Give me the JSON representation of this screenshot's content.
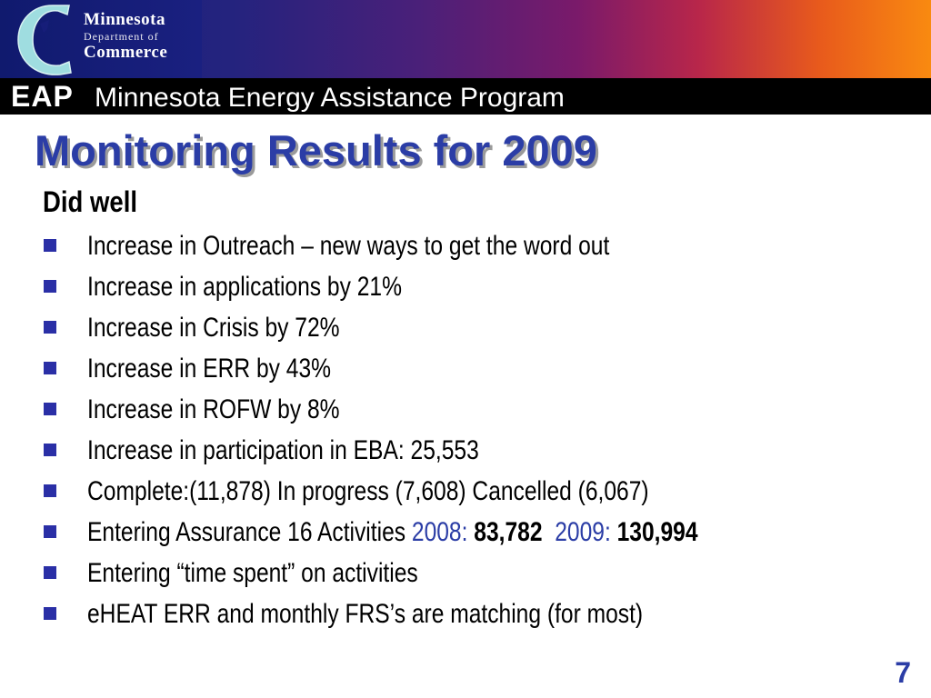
{
  "header": {
    "logo": {
      "line1": "Minnesota",
      "line2": "Department of",
      "line3": "Commerce"
    },
    "eap": "EAP",
    "program": "Minnesota Energy Assistance Program"
  },
  "slide": {
    "title": "Monitoring Results for 2009",
    "subheading": "Did well",
    "bullets": [
      "Increase in Outreach – new ways to get the word out",
      "Increase in applications by 21%",
      "Increase in Crisis by 72%",
      "Increase in ERR by 43%",
      "Increase in ROFW by 8%",
      "Increase in participation in EBA: 25,553",
      "Complete:(11,878)  In progress (7,608) Cancelled (6,067)"
    ],
    "assurance": {
      "prefix": "Entering Assurance 16 Activities ",
      "label_2008": "2008: ",
      "value_2008": "83,782",
      "label_2009": "2009: ",
      "value_2009": "130,994"
    },
    "bullets_after": [
      "Entering “time spent” on activities",
      "eHEAT ERR and  monthly FRS’s are matching (for most)"
    ],
    "page_number": "7"
  },
  "colors": {
    "title_blue": "#2b3da6",
    "bullet_blue": "#2a2fa6",
    "header_black": "#000000"
  },
  "icons": {
    "logo": "minnesota-commerce-c-logo",
    "bullet": "square-bullet-icon"
  }
}
